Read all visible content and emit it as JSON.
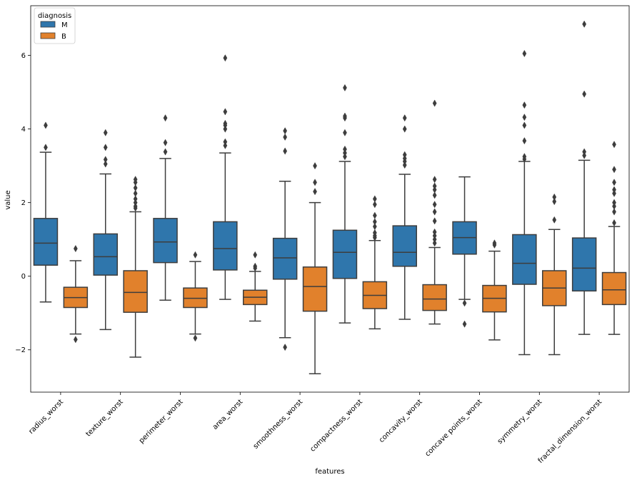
{
  "chart_data": {
    "type": "boxplot",
    "xlabel": "features",
    "ylabel": "value",
    "ylim": [
      -3.15,
      7.35
    ],
    "yticks": [
      -2,
      0,
      2,
      4,
      6
    ],
    "ytick_labels": [
      "−2",
      "0",
      "2",
      "4",
      "6"
    ],
    "grid": false,
    "legend": {
      "title": "diagnosis",
      "placement": "top-left",
      "entries": [
        {
          "label": "M",
          "color": "#2f76ac"
        },
        {
          "label": "B",
          "color": "#e1812c"
        }
      ]
    },
    "categories": [
      "radius_worst",
      "texture_worst",
      "perimeter_worst",
      "area_worst",
      "smoothness_worst",
      "compactness_worst",
      "concavity_worst",
      "concave points_worst",
      "symmetry_worst",
      "fractal_dimension_worst"
    ],
    "series": [
      {
        "name": "M",
        "color": "#2f76ac",
        "boxes": [
          {
            "whisker_low": -0.7,
            "q1": 0.3,
            "median": 0.9,
            "q3": 1.57,
            "whisker_high": 3.37,
            "fliers": [
              3.5,
              4.1
            ]
          },
          {
            "whisker_low": -1.45,
            "q1": 0.03,
            "median": 0.53,
            "q3": 1.15,
            "whisker_high": 2.78,
            "fliers": [
              3.05,
              3.17,
              3.5,
              3.9
            ]
          },
          {
            "whisker_low": -0.65,
            "q1": 0.37,
            "median": 0.93,
            "q3": 1.57,
            "whisker_high": 3.2,
            "fliers": [
              3.38,
              3.63,
              4.3
            ]
          },
          {
            "whisker_low": -0.63,
            "q1": 0.17,
            "median": 0.75,
            "q3": 1.48,
            "whisker_high": 3.35,
            "fliers": [
              3.55,
              3.65,
              4.0,
              4.1,
              4.15,
              4.47,
              5.93
            ]
          },
          {
            "whisker_low": -1.67,
            "q1": -0.08,
            "median": 0.5,
            "q3": 1.03,
            "whisker_high": 2.58,
            "fliers": [
              3.4,
              3.78,
              3.95,
              -1.93
            ]
          },
          {
            "whisker_low": -1.27,
            "q1": -0.06,
            "median": 0.65,
            "q3": 1.25,
            "whisker_high": 3.12,
            "fliers": [
              3.25,
              3.35,
              3.45,
              3.9,
              4.3,
              4.35,
              5.12
            ]
          },
          {
            "whisker_low": -1.17,
            "q1": 0.27,
            "median": 0.65,
            "q3": 1.37,
            "whisker_high": 2.77,
            "fliers": [
              3.02,
              3.12,
              3.2,
              3.3,
              4.0,
              4.3
            ]
          },
          {
            "whisker_low": -0.63,
            "q1": 0.6,
            "median": 1.05,
            "q3": 1.48,
            "whisker_high": 2.7,
            "fliers": [
              -0.73,
              -1.3
            ]
          },
          {
            "whisker_low": -2.13,
            "q1": -0.22,
            "median": 0.35,
            "q3": 1.13,
            "whisker_high": 3.12,
            "fliers": [
              3.18,
              3.25,
              3.68,
              4.1,
              4.32,
              4.65,
              6.05
            ]
          },
          {
            "whisker_low": -1.58,
            "q1": -0.4,
            "median": 0.22,
            "q3": 1.04,
            "whisker_high": 3.15,
            "fliers": [
              3.28,
              3.38,
              4.95,
              6.85
            ]
          }
        ]
      },
      {
        "name": "B",
        "color": "#e1812c",
        "boxes": [
          {
            "whisker_low": -1.57,
            "q1": -0.85,
            "median": -0.58,
            "q3": -0.3,
            "whisker_high": 0.42,
            "fliers": [
              0.75,
              -1.72
            ]
          },
          {
            "whisker_low": -2.2,
            "q1": -0.98,
            "median": -0.44,
            "q3": 0.15,
            "whisker_high": 1.75,
            "fliers": [
              1.85,
              1.9,
              2.0,
              2.1,
              2.25,
              2.4,
              2.55,
              2.63
            ]
          },
          {
            "whisker_low": -1.57,
            "q1": -0.85,
            "median": -0.6,
            "q3": -0.32,
            "whisker_high": 0.4,
            "fliers": [
              0.58,
              -1.68
            ]
          },
          {
            "whisker_low": -1.22,
            "q1": -0.77,
            "median": -0.57,
            "q3": -0.38,
            "whisker_high": 0.13,
            "fliers": [
              0.22,
              0.27,
              0.58
            ]
          },
          {
            "whisker_low": -2.65,
            "q1": -0.95,
            "median": -0.28,
            "q3": 0.25,
            "whisker_high": 2.0,
            "fliers": [
              2.3,
              2.55,
              3.0
            ]
          },
          {
            "whisker_low": -1.43,
            "q1": -0.88,
            "median": -0.52,
            "q3": -0.15,
            "whisker_high": 0.97,
            "fliers": [
              1.05,
              1.1,
              1.18,
              1.35,
              1.48,
              1.65,
              1.95,
              2.1
            ]
          },
          {
            "whisker_low": -1.3,
            "q1": -0.93,
            "median": -0.62,
            "q3": -0.23,
            "whisker_high": 0.78,
            "fliers": [
              0.9,
              1.0,
              1.1,
              1.2,
              1.5,
              1.75,
              1.95,
              2.2,
              2.35,
              2.45,
              2.63,
              4.7
            ]
          },
          {
            "whisker_low": -1.73,
            "q1": -0.97,
            "median": -0.6,
            "q3": -0.25,
            "whisker_high": 0.68,
            "fliers": [
              0.85,
              0.9
            ]
          },
          {
            "whisker_low": -2.13,
            "q1": -0.8,
            "median": -0.32,
            "q3": 0.15,
            "whisker_high": 1.27,
            "fliers": [
              1.53,
              2.03,
              2.15
            ]
          },
          {
            "whisker_low": -1.58,
            "q1": -0.77,
            "median": -0.37,
            "q3": 0.1,
            "whisker_high": 1.35,
            "fliers": [
              1.45,
              1.75,
              1.9,
              2.0,
              2.25,
              2.35,
              2.55,
              2.9,
              3.58
            ]
          }
        ]
      }
    ]
  }
}
